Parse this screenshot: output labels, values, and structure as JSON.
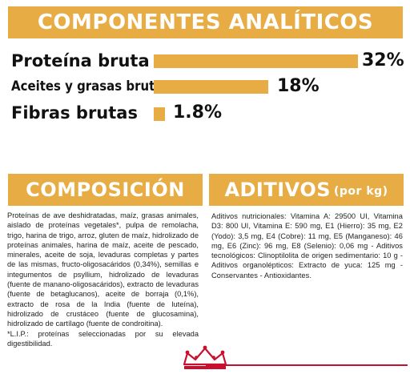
{
  "analiticos": {
    "title": "COMPONENTES ANALÍTICOS",
    "rows": [
      {
        "label": "Proteína bruta",
        "value": "32%",
        "percent": 32
      },
      {
        "label": "Aceites y grasas brutos",
        "value": "18%",
        "percent": 18
      },
      {
        "label": "Fibras brutas",
        "value": "1.8%",
        "percent": 1.8
      }
    ]
  },
  "composicion": {
    "title": "COMPOSICIÓN",
    "text": "Proteínas de ave deshidratadas, maíz, grasas animales, aislado de proteínas vegetales*, pulpa de remolacha, trigo, harina de trigo, arroz, gluten de maíz, hidrolizado de proteínas animales, harina de maíz, aceite de pescado, minerales, aceite de soja, levaduras completas y partes de las mismas, fructo-oligosacáridos (0,34%), semillas e integumentos de psyllium, hidrolizado de levaduras (fuente de manano-oligosacáridos), extracto de levaduras (fuente de betaglucanos), aceite de borraja (0,1%), extracto de rosa de la India (fuente de luteína), hidrolizado de crustáceo (fuente de glucosamina), hidrolizado de cartílago (fuente de condroitina).",
    "note": "*L.I.P.: proteínas seleccionadas por su elevada digestibilidad."
  },
  "aditivos": {
    "title": "ADITIVOS",
    "title_suffix": "(por kg)",
    "text": "Aditivos nutricionales: Vitamina A: 29500 UI, Vitamina D3: 800 UI, Vitamina E: 590 mg, E1 (Hierro): 35 mg, E2 (Yodo): 3,5 mg, E4 (Cobre): 11 mg, E5 (Manganeso): 46 mg, E6 (Zinc): 96 mg, E8 (Selenio): 0,06 mg - Aditivos tecnológicos: Clinoptilolita de origen sedimentario: 10 g - Aditivos organolépticos: Extracto de yuca: 125 mg - Conservantes - Antioxidantes."
  },
  "colors": {
    "accent": "#e8ac45",
    "brand_red": "#c8102e"
  },
  "logo": {
    "icon": "crown-icon"
  }
}
